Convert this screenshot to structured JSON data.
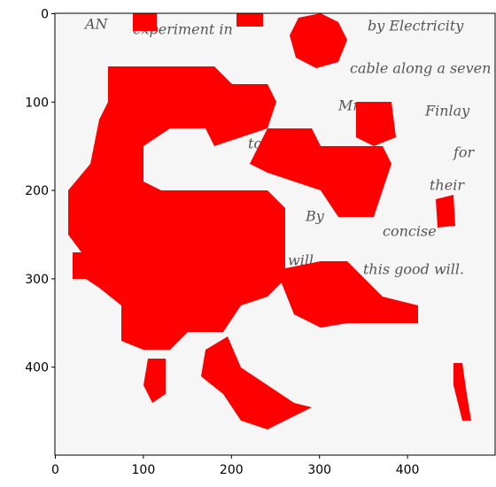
{
  "chart_data": {
    "type": "image",
    "xlim": [
      -0.5,
      499.5
    ],
    "ylim": [
      499.5,
      -0.5
    ],
    "xticks": [
      0,
      100,
      200,
      300,
      400
    ],
    "yticks": [
      0,
      100,
      200,
      300,
      400
    ],
    "annotations": [
      "AN",
      "experiment in",
      "by Electricity",
      "cable along a seven",
      "Mr.",
      "Finlay",
      "to",
      "for",
      "their",
      "By",
      "concise",
      "will",
      "this good will."
    ]
  }
}
